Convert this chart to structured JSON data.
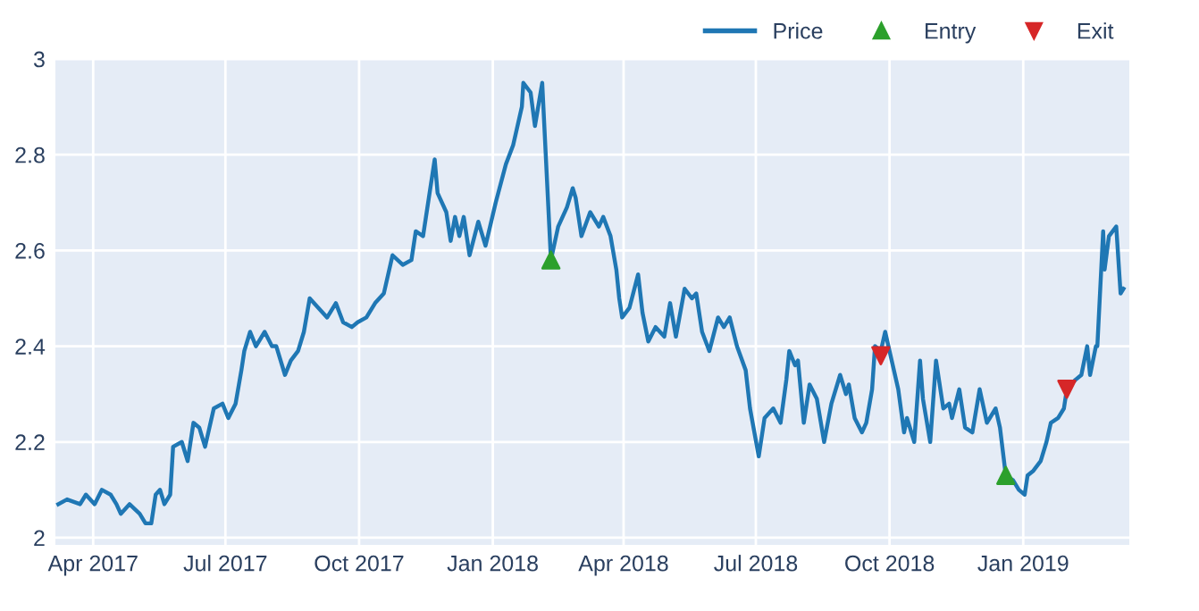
{
  "chart_data": {
    "type": "line",
    "xlim": [
      "2017-03-06",
      "2019-03-15"
    ],
    "ylim": [
      1.985,
      3.0
    ],
    "xticks": [
      {
        "value": "2017-04-01",
        "label": "Apr 2017"
      },
      {
        "value": "2017-07-01",
        "label": "Jul 2017"
      },
      {
        "value": "2017-10-01",
        "label": "Oct 2017"
      },
      {
        "value": "2018-01-01",
        "label": "Jan 2018"
      },
      {
        "value": "2018-04-01",
        "label": "Apr 2018"
      },
      {
        "value": "2018-07-01",
        "label": "Jul 2018"
      },
      {
        "value": "2018-10-01",
        "label": "Oct 2018"
      },
      {
        "value": "2019-01-01",
        "label": "Jan 2019"
      }
    ],
    "yticks": [
      2,
      2.2,
      2.4,
      2.6,
      2.8,
      3
    ],
    "grid": true,
    "legend": "top right",
    "series": [
      {
        "name": "Price",
        "color": "#1f77b4",
        "marker": "none",
        "line_style": "solid",
        "x": [
          "2017-03-08",
          "2017-03-14",
          "2017-03-23",
          "2017-03-27",
          "2017-04-02",
          "2017-04-07",
          "2017-04-13",
          "2017-04-17",
          "2017-04-20",
          "2017-04-26",
          "2017-05-03",
          "2017-05-07",
          "2017-05-11",
          "2017-05-14",
          "2017-05-17",
          "2017-05-20",
          "2017-05-24",
          "2017-05-26",
          "2017-06-01",
          "2017-06-05",
          "2017-06-09",
          "2017-06-13",
          "2017-06-17",
          "2017-06-23",
          "2017-06-29",
          "2017-07-03",
          "2017-07-08",
          "2017-07-12",
          "2017-07-14",
          "2017-07-18",
          "2017-07-22",
          "2017-07-28",
          "2017-08-02",
          "2017-08-05",
          "2017-08-11",
          "2017-08-15",
          "2017-08-20",
          "2017-08-24",
          "2017-08-28",
          "2017-09-03",
          "2017-09-09",
          "2017-09-15",
          "2017-09-20",
          "2017-09-26",
          "2017-09-30",
          "2017-10-06",
          "2017-10-12",
          "2017-10-18",
          "2017-10-24",
          "2017-10-31",
          "2017-11-06",
          "2017-11-09",
          "2017-11-14",
          "2017-11-18",
          "2017-11-22",
          "2017-11-24",
          "2017-11-30",
          "2017-12-03",
          "2017-12-06",
          "2017-12-09",
          "2017-12-12",
          "2017-12-16",
          "2017-12-22",
          "2017-12-27",
          "2018-01-03",
          "2018-01-10",
          "2018-01-15",
          "2018-01-21",
          "2018-01-22",
          "2018-01-27",
          "2018-01-30",
          "2018-02-04",
          "2018-02-10",
          "2018-02-15",
          "2018-02-21",
          "2018-02-25",
          "2018-02-27",
          "2018-03-03",
          "2018-03-09",
          "2018-03-15",
          "2018-03-18",
          "2018-03-23",
          "2018-03-27",
          "2018-03-29",
          "2018-03-31",
          "2018-04-05",
          "2018-04-11",
          "2018-04-14",
          "2018-04-18",
          "2018-04-23",
          "2018-04-29",
          "2018-05-03",
          "2018-05-07",
          "2018-05-13",
          "2018-05-18",
          "2018-05-21",
          "2018-05-25",
          "2018-05-30",
          "2018-06-05",
          "2018-06-09",
          "2018-06-13",
          "2018-06-18",
          "2018-06-24",
          "2018-06-27",
          "2018-06-30",
          "2018-07-03",
          "2018-07-07",
          "2018-07-13",
          "2018-07-18",
          "2018-07-22",
          "2018-07-24",
          "2018-07-28",
          "2018-07-30",
          "2018-08-03",
          "2018-08-07",
          "2018-08-12",
          "2018-08-17",
          "2018-08-22",
          "2018-08-28",
          "2018-09-01",
          "2018-09-03",
          "2018-09-07",
          "2018-09-12",
          "2018-09-15",
          "2018-09-19",
          "2018-09-21",
          "2018-09-25",
          "2018-09-28",
          "2018-10-01",
          "2018-10-07",
          "2018-10-11",
          "2018-10-13",
          "2018-10-18",
          "2018-10-22",
          "2018-10-24",
          "2018-10-29",
          "2018-11-02",
          "2018-11-07",
          "2018-11-11",
          "2018-11-13",
          "2018-11-18",
          "2018-11-22",
          "2018-11-27",
          "2018-12-02",
          "2018-12-07",
          "2018-12-13",
          "2018-12-16",
          "2018-12-20",
          "2018-12-25",
          "2018-12-29",
          "2019-01-02",
          "2019-01-04",
          "2019-01-08",
          "2019-01-13",
          "2019-01-17",
          "2019-01-20",
          "2019-01-25",
          "2019-01-29",
          "2019-01-31",
          "2019-02-06",
          "2019-02-10",
          "2019-02-14",
          "2019-02-16",
          "2019-02-20",
          "2019-02-21",
          "2019-02-25",
          "2019-02-26",
          "2019-03-01",
          "2019-03-06",
          "2019-03-09",
          "2019-03-11"
        ],
        "values": [
          2.07,
          2.08,
          2.07,
          2.09,
          2.07,
          2.1,
          2.09,
          2.07,
          2.05,
          2.07,
          2.05,
          2.03,
          2.03,
          2.09,
          2.1,
          2.07,
          2.09,
          2.19,
          2.2,
          2.16,
          2.24,
          2.23,
          2.19,
          2.27,
          2.28,
          2.25,
          2.28,
          2.35,
          2.39,
          2.43,
          2.4,
          2.43,
          2.4,
          2.4,
          2.34,
          2.37,
          2.39,
          2.43,
          2.5,
          2.48,
          2.46,
          2.49,
          2.45,
          2.44,
          2.45,
          2.46,
          2.49,
          2.51,
          2.59,
          2.57,
          2.58,
          2.64,
          2.63,
          2.71,
          2.79,
          2.72,
          2.68,
          2.62,
          2.67,
          2.63,
          2.67,
          2.59,
          2.66,
          2.61,
          2.7,
          2.78,
          2.82,
          2.9,
          2.95,
          2.93,
          2.86,
          2.95,
          2.58,
          2.65,
          2.69,
          2.73,
          2.71,
          2.63,
          2.68,
          2.65,
          2.67,
          2.63,
          2.56,
          2.5,
          2.46,
          2.48,
          2.55,
          2.47,
          2.41,
          2.44,
          2.42,
          2.49,
          2.42,
          2.52,
          2.5,
          2.51,
          2.43,
          2.39,
          2.46,
          2.44,
          2.46,
          2.4,
          2.35,
          2.27,
          2.22,
          2.17,
          2.25,
          2.27,
          2.24,
          2.33,
          2.39,
          2.36,
          2.37,
          2.24,
          2.32,
          2.29,
          2.2,
          2.28,
          2.34,
          2.3,
          2.32,
          2.25,
          2.22,
          2.24,
          2.31,
          2.4,
          2.39,
          2.43,
          2.39,
          2.31,
          2.22,
          2.25,
          2.2,
          2.37,
          2.29,
          2.2,
          2.37,
          2.27,
          2.28,
          2.25,
          2.31,
          2.23,
          2.22,
          2.31,
          2.24,
          2.27,
          2.23,
          2.13,
          2.12,
          2.1,
          2.09,
          2.13,
          2.14,
          2.16,
          2.2,
          2.24,
          2.25,
          2.27,
          2.31,
          2.33,
          2.34,
          2.4,
          2.34,
          2.4,
          2.4,
          2.64,
          2.56,
          2.63,
          2.65,
          2.51,
          2.52
        ]
      },
      {
        "name": "Entry",
        "type": "scatter",
        "color": "#2ca02c",
        "marker": "triangle",
        "x": [
          "2018-02-10",
          "2018-12-20"
        ],
        "values": [
          2.58,
          2.13
        ]
      },
      {
        "name": "Exit",
        "type": "scatter",
        "color": "#d62728",
        "marker": "triangle-down",
        "x": [
          "2018-09-25",
          "2019-01-31"
        ],
        "values": [
          2.38,
          2.31
        ]
      }
    ]
  }
}
